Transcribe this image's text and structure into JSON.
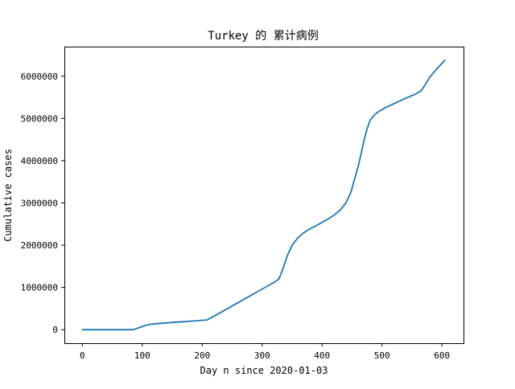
{
  "chart_data": {
    "type": "line",
    "title": "Turkey 的 累计病例",
    "xlabel": "Day n since 2020-01-03",
    "ylabel": "Cumulative cases",
    "xlim": [
      -30,
      636
    ],
    "ylim": [
      -320000,
      6700000
    ],
    "x_ticks": [
      0,
      100,
      200,
      300,
      400,
      500,
      600
    ],
    "x_tick_labels": [
      "0",
      "100",
      "200",
      "300",
      "400",
      "500",
      "600"
    ],
    "y_ticks": [
      0,
      1000000,
      2000000,
      3000000,
      4000000,
      5000000,
      6000000
    ],
    "y_tick_labels": [
      "0",
      "1000000",
      "2000000",
      "3000000",
      "4000000",
      "5000000",
      "6000000"
    ],
    "grid": false,
    "legend": "none",
    "series_color": "#1f77b4",
    "series": [
      {
        "x": [
          0,
          20,
          40,
          60,
          85,
          95,
          105,
          115,
          130,
          150,
          170,
          190,
          208,
          230,
          250,
          270,
          290,
          310,
          320,
          328,
          335,
          342,
          350,
          360,
          370,
          380,
          390,
          400,
          410,
          420,
          430,
          440,
          448,
          455,
          460,
          465,
          470,
          475,
          480,
          487,
          495,
          505,
          520,
          540,
          555,
          565,
          570,
          580,
          590,
          600,
          605
        ],
        "y": [
          0,
          0,
          0,
          0,
          0,
          50000,
          100000,
          130000,
          150000,
          170000,
          190000,
          210000,
          230000,
          400000,
          560000,
          720000,
          880000,
          1040000,
          1120000,
          1200000,
          1450000,
          1750000,
          2000000,
          2180000,
          2300000,
          2390000,
          2460000,
          2540000,
          2620000,
          2710000,
          2830000,
          3000000,
          3250000,
          3600000,
          3850000,
          4150000,
          4480000,
          4750000,
          4950000,
          5080000,
          5170000,
          5250000,
          5350000,
          5480000,
          5570000,
          5650000,
          5750000,
          5980000,
          6150000,
          6300000,
          6380000
        ]
      }
    ]
  }
}
